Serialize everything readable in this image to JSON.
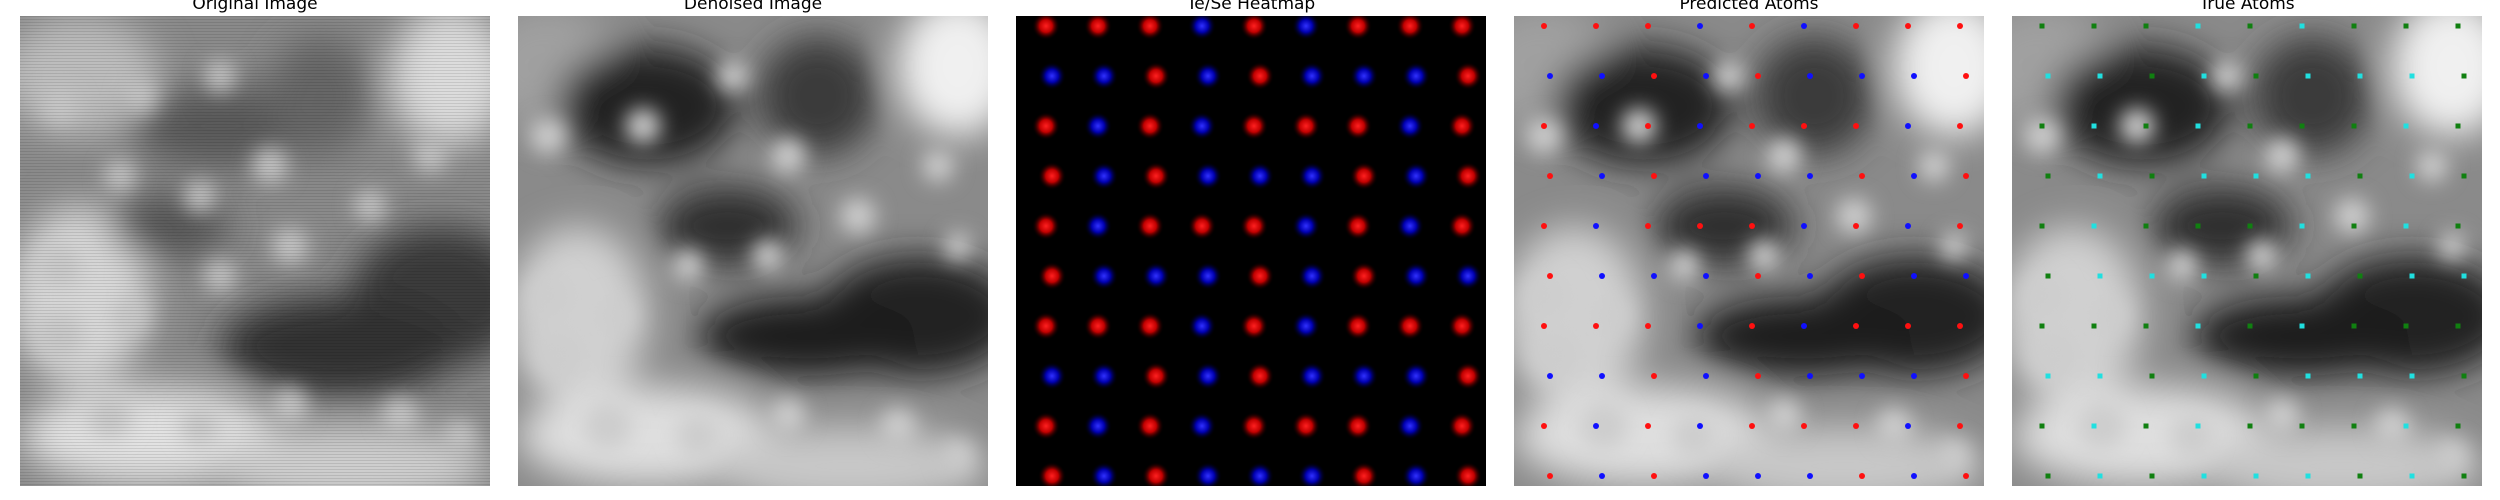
{
  "figure": {
    "panels": [
      {
        "title": "Original Image"
      },
      {
        "title": "Denoised Image"
      },
      {
        "title": "Te/Se Heatmap"
      },
      {
        "title": "Predicted Atoms"
      },
      {
        "title": "True Atoms"
      }
    ]
  },
  "colors": {
    "heatmap_red": "#ff1a1a",
    "heatmap_blue": "#2020ff",
    "pred_red": "#ff1010",
    "pred_blue": "#1010ff",
    "true_green": "#108010",
    "true_cyan": "#20e0e0"
  }
}
